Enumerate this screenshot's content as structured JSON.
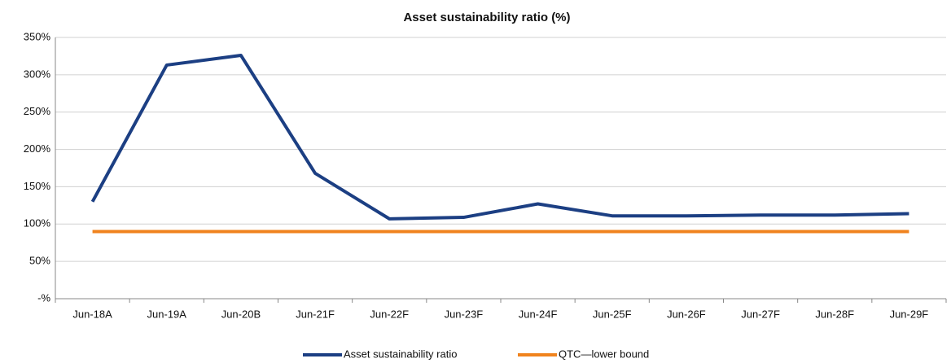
{
  "chart_data": {
    "type": "line",
    "title": "Asset sustainability  ratio (%)",
    "categories": [
      "Jun-18A",
      "Jun-19A",
      "Jun-20B",
      "Jun-21F",
      "Jun-22F",
      "Jun-23F",
      "Jun-24F",
      "Jun-25F",
      "Jun-26F",
      "Jun-27F",
      "Jun-28F",
      "Jun-29F"
    ],
    "series": [
      {
        "name": "Asset sustainability ratio",
        "color": "#1c3f83",
        "values": [
          130,
          313,
          326,
          168,
          107,
          109,
          127,
          111,
          111,
          112,
          112,
          114
        ]
      },
      {
        "name": "QTC—lower bound",
        "color": "#f0831e",
        "values": [
          90,
          90,
          90,
          90,
          90,
          90,
          90,
          90,
          90,
          90,
          90,
          90
        ]
      }
    ],
    "ylim": [
      0,
      350
    ],
    "yticks": [
      {
        "value": 0,
        "label": "-%"
      },
      {
        "value": 50,
        "label": "50%"
      },
      {
        "value": 100,
        "label": "100%"
      },
      {
        "value": 150,
        "label": "150%"
      },
      {
        "value": 200,
        "label": "200%"
      },
      {
        "value": 250,
        "label": "250%"
      },
      {
        "value": 300,
        "label": "300%"
      },
      {
        "value": 350,
        "label": "350%"
      }
    ],
    "grid": true,
    "legend": "bottom"
  }
}
